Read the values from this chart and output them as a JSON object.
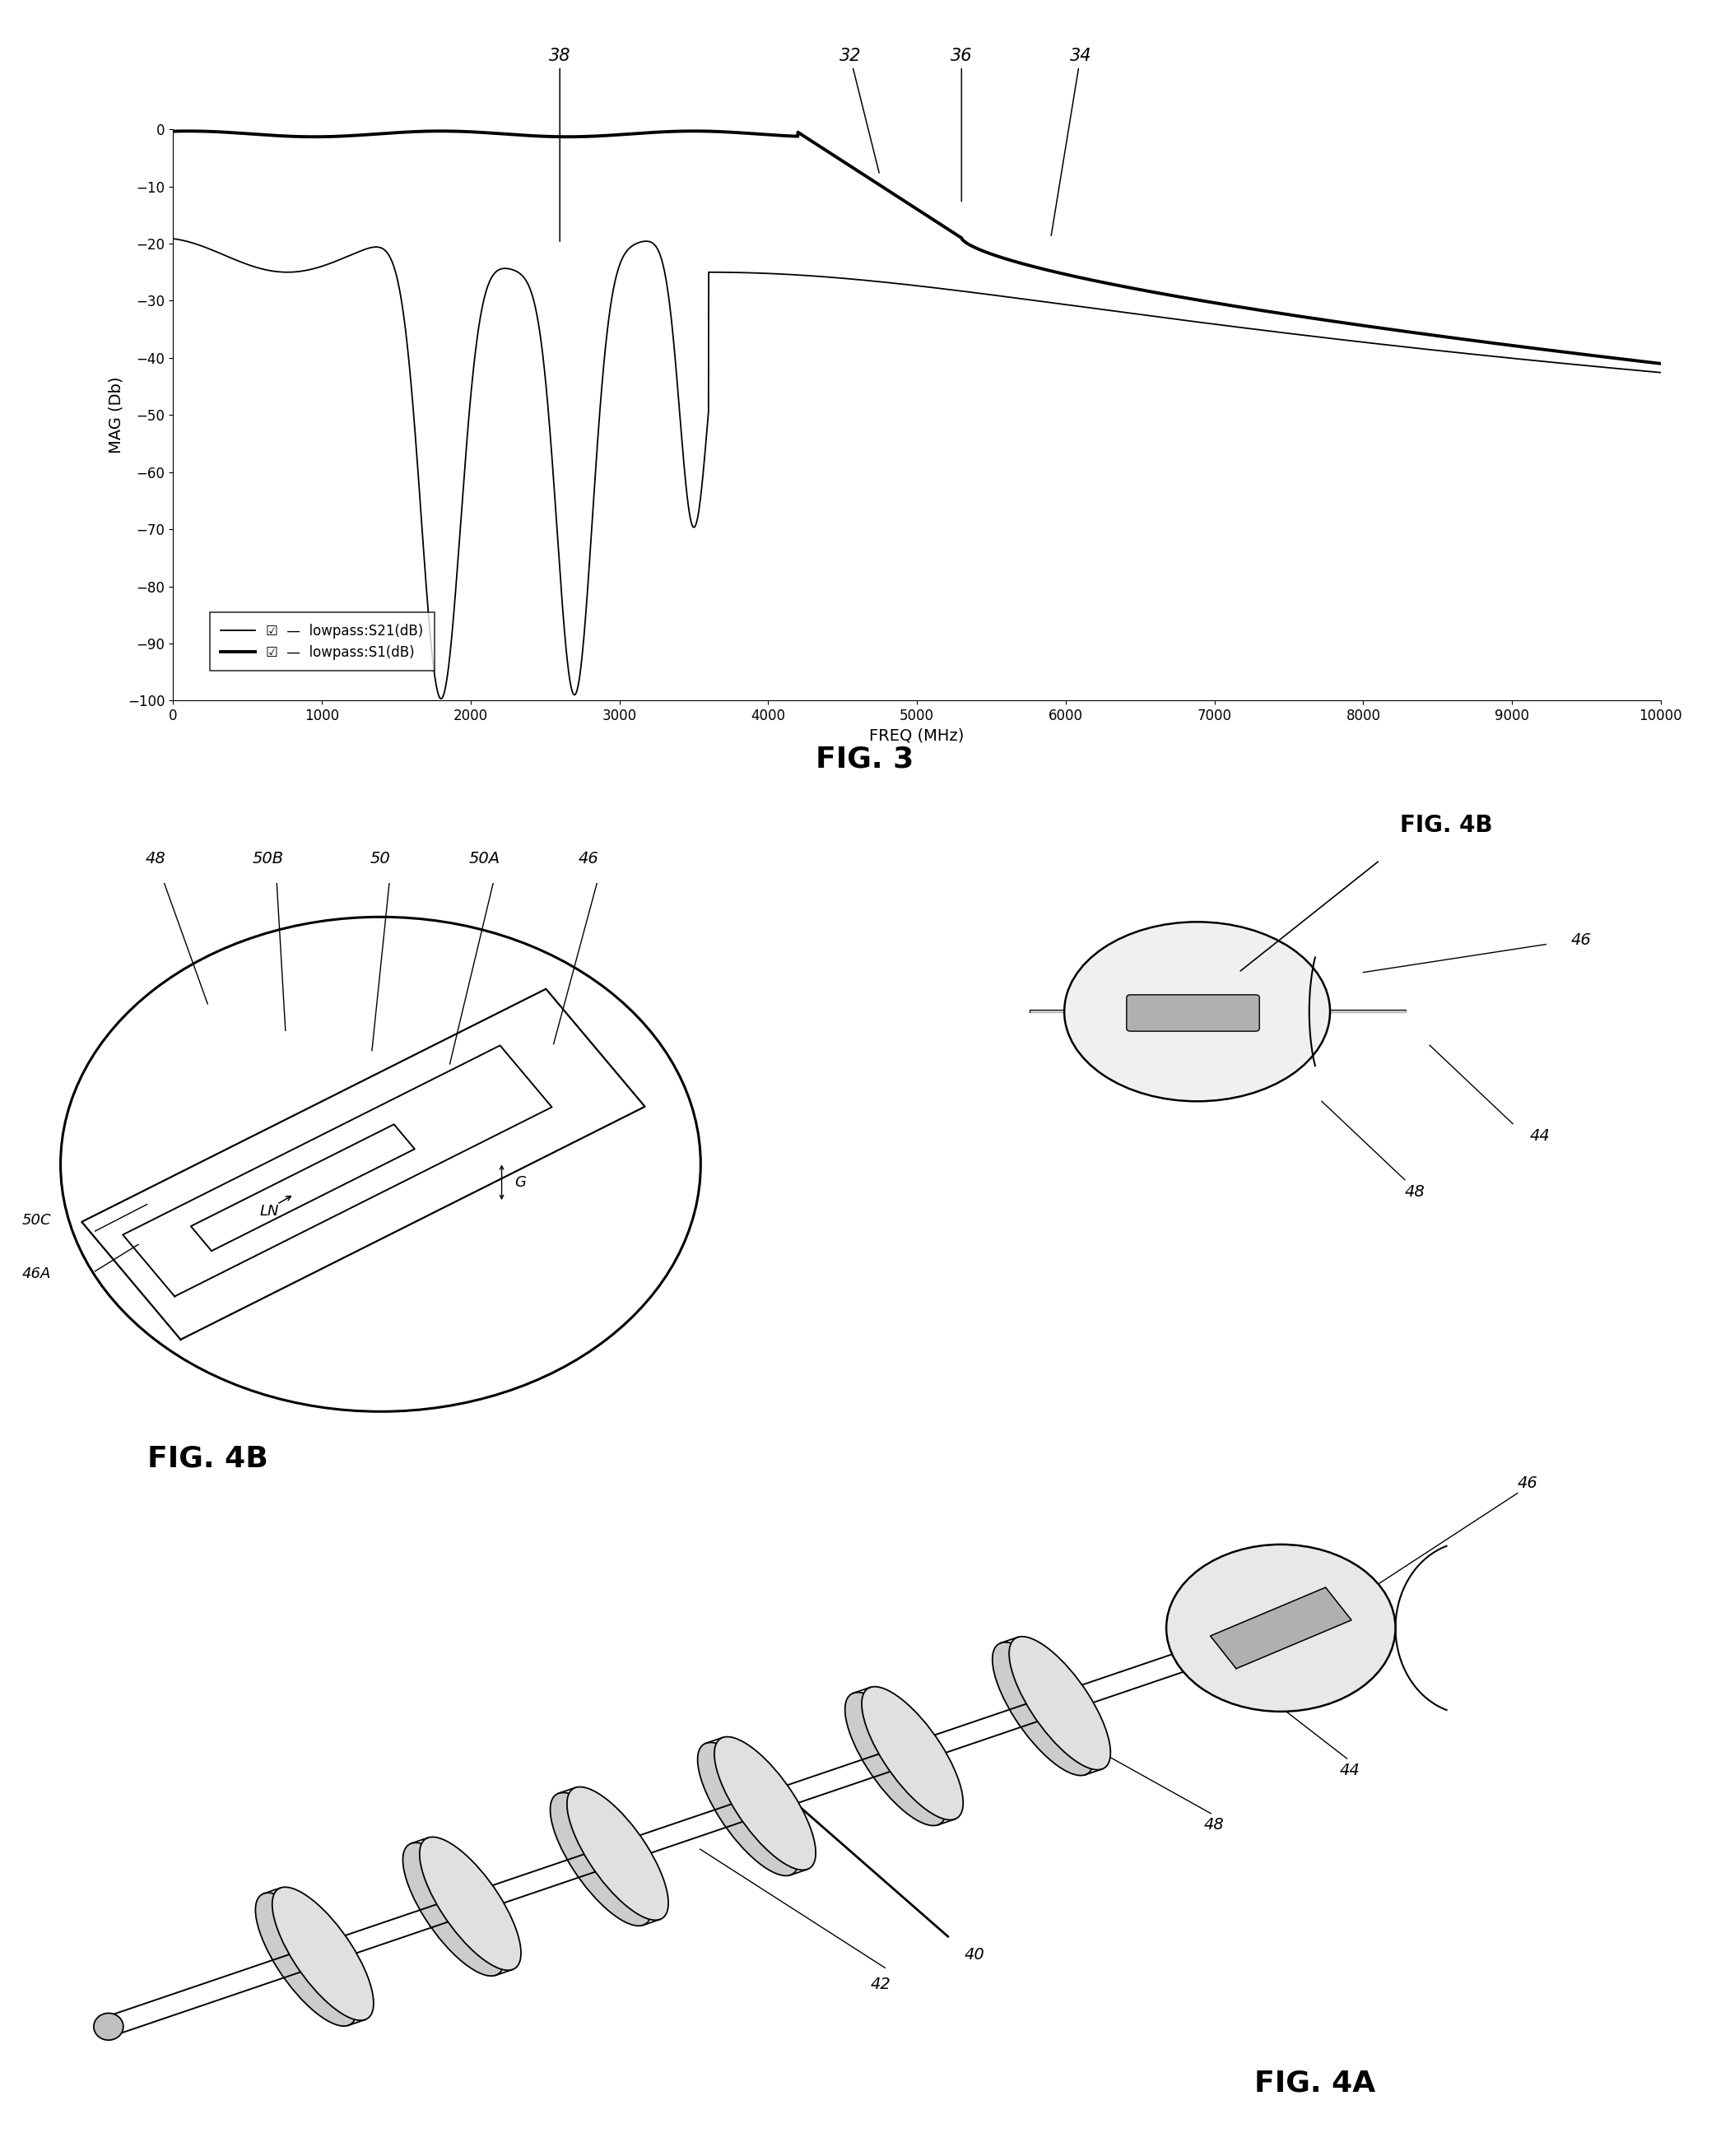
{
  "fig3_title": "FIG. 3",
  "fig4a_title": "FIG. 4A",
  "fig4b_title": "FIG. 4B",
  "xlabel": "FREQ (MHz)",
  "ylabel": "MAG (Db)",
  "xlim": [
    0,
    10000
  ],
  "ylim": [
    -100,
    0
  ],
  "xticks": [
    0,
    1000,
    2000,
    3000,
    4000,
    5000,
    6000,
    7000,
    8000,
    9000,
    10000
  ],
  "yticks": [
    0,
    -10,
    -20,
    -30,
    -40,
    -50,
    -60,
    -70,
    -80,
    -90,
    -100
  ],
  "legend_labels": [
    "lowpass:S21(dB)",
    "lowpass:S1(dB)"
  ],
  "background_color": "#ffffff",
  "line_color": "#000000",
  "s21_passband_level": -22,
  "s21_ripple_amp": 3,
  "s1_passband_level": -1.5,
  "cross_freq": 5200
}
